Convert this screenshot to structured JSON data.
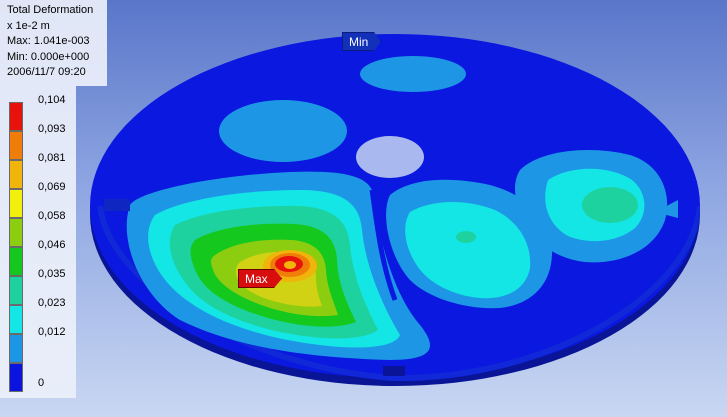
{
  "result": {
    "title": "Total Deformation",
    "unit": "x 1e-2 m",
    "max_text": "Max: 1.041e-003",
    "min_text": "Min: 0.000e+000",
    "timestamp": "2006/11/7 09:20"
  },
  "legend": {
    "levels": [
      {
        "label": "0,104",
        "color": "#e8120c"
      },
      {
        "label": "0,093",
        "color": "#f07d0a"
      },
      {
        "label": "0,081",
        "color": "#f0b40a"
      },
      {
        "label": "0,069",
        "color": "#f0f00c"
      },
      {
        "label": "0,058",
        "color": "#8ccd10"
      },
      {
        "label": "0,046",
        "color": "#14c81e"
      },
      {
        "label": "0,035",
        "color": "#1ed2a0"
      },
      {
        "label": "0,023",
        "color": "#14e6e6"
      },
      {
        "label": "0,012",
        "color": "#1e96e6"
      },
      {
        "label": "0",
        "color": "#0a14dc"
      }
    ]
  },
  "probes": {
    "min_label": "Min",
    "max_label": "Max"
  }
}
